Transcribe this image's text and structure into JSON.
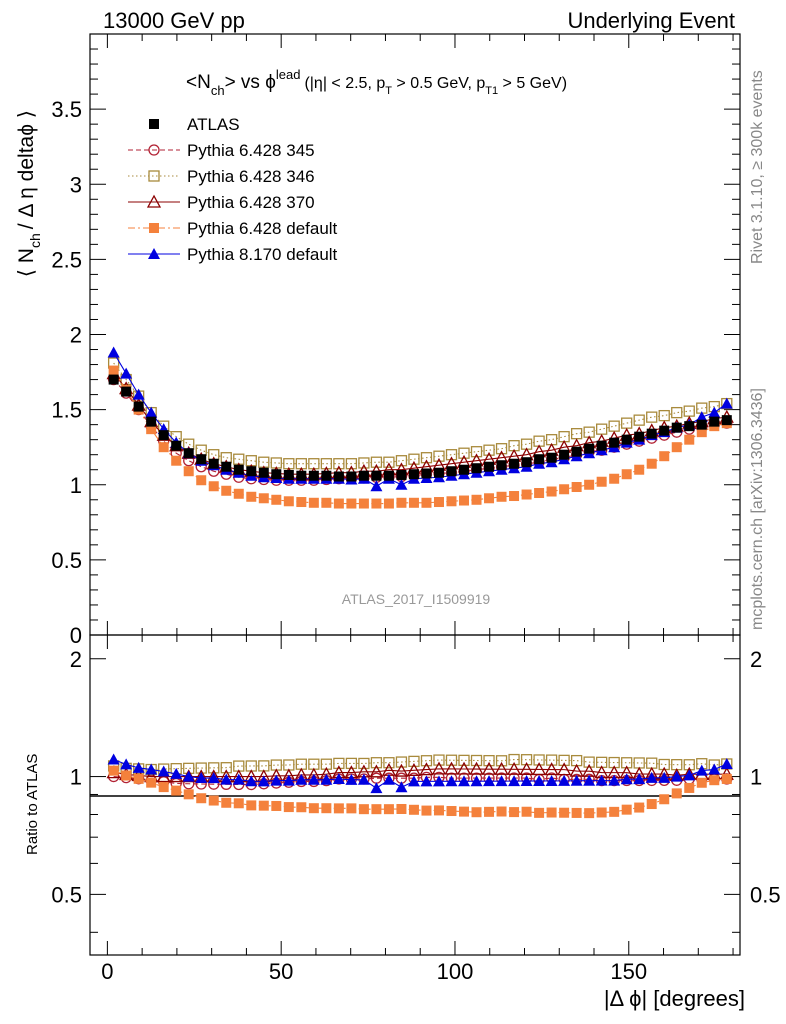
{
  "header": {
    "left": "13000 GeV pp",
    "right": "Underlying Event"
  },
  "side_labels": {
    "rivet": "Rivet 3.1.10, ≥ 300k events",
    "mcplots": "mcplots.cern.ch [arXiv:1306.3436]"
  },
  "watermark": "ATLAS_2017_I1509919",
  "chart_data": [
    {
      "type": "scatter",
      "panel": "main",
      "title_parts": {
        "pre": "<N",
        "pre_sub": "ch",
        "mid": "> vs ϕ",
        "mid_sup": "lead",
        "cut1": "(|η| < 2.5, p",
        "cut1_sub": "T",
        "cut2": " > 0.5 GeV, p",
        "cut2_sub": "T1",
        "cut3": " > 5 GeV)"
      },
      "ylabel_parts": {
        "a": "⟨ N",
        "a_sub": "ch",
        "b": "/ Δ η deltaϕ ⟩"
      },
      "xlim": [
        -5,
        182
      ],
      "ylim": [
        0,
        4
      ],
      "y_ticks": [
        "0",
        "0.5",
        "1",
        "1.5",
        "2",
        "2.5",
        "3",
        "3.5"
      ],
      "legend_position": "top-left",
      "x": [
        1.8,
        5.4,
        9.0,
        12.6,
        16.2,
        19.8,
        23.4,
        27.0,
        30.6,
        34.2,
        37.8,
        41.4,
        45.0,
        48.6,
        52.2,
        55.8,
        59.4,
        63.0,
        66.6,
        70.2,
        73.8,
        77.4,
        81.0,
        84.6,
        88.2,
        91.8,
        95.4,
        99.0,
        102.6,
        106.2,
        109.8,
        113.4,
        117.0,
        120.6,
        124.2,
        127.8,
        131.4,
        135.0,
        138.6,
        142.2,
        145.8,
        149.4,
        153.0,
        156.6,
        160.2,
        163.8,
        167.4,
        171.0,
        174.6,
        178.2
      ],
      "series": [
        {
          "name": "ATLAS",
          "color": "#000000",
          "marker": "square-filled",
          "line": "none",
          "values": [
            1.7,
            1.62,
            1.52,
            1.42,
            1.33,
            1.26,
            1.21,
            1.17,
            1.14,
            1.12,
            1.1,
            1.09,
            1.08,
            1.07,
            1.065,
            1.06,
            1.06,
            1.06,
            1.055,
            1.055,
            1.06,
            1.06,
            1.06,
            1.065,
            1.07,
            1.075,
            1.08,
            1.09,
            1.1,
            1.11,
            1.12,
            1.13,
            1.14,
            1.15,
            1.17,
            1.18,
            1.2,
            1.22,
            1.24,
            1.26,
            1.28,
            1.3,
            1.32,
            1.34,
            1.36,
            1.38,
            1.39,
            1.4,
            1.42,
            1.43
          ]
        },
        {
          "name": "Pythia 6.428 345",
          "color": "#b22234",
          "marker": "circle-open",
          "line": "dashed",
          "values": [
            1.7,
            1.61,
            1.5,
            1.39,
            1.29,
            1.21,
            1.16,
            1.12,
            1.09,
            1.07,
            1.05,
            1.04,
            1.035,
            1.03,
            1.03,
            1.03,
            1.03,
            1.035,
            1.04,
            1.04,
            1.045,
            1.05,
            1.05,
            1.055,
            1.06,
            1.07,
            1.075,
            1.08,
            1.09,
            1.1,
            1.11,
            1.12,
            1.13,
            1.14,
            1.15,
            1.17,
            1.18,
            1.2,
            1.22,
            1.23,
            1.25,
            1.27,
            1.29,
            1.31,
            1.33,
            1.35,
            1.37,
            1.38,
            1.4,
            1.41
          ]
        },
        {
          "name": "Pythia 6.428 346",
          "color": "#a88a3c",
          "marker": "square-open",
          "line": "dotted",
          "values": [
            1.81,
            1.7,
            1.59,
            1.48,
            1.39,
            1.32,
            1.27,
            1.23,
            1.2,
            1.18,
            1.17,
            1.16,
            1.15,
            1.145,
            1.14,
            1.14,
            1.14,
            1.14,
            1.14,
            1.14,
            1.145,
            1.15,
            1.15,
            1.16,
            1.17,
            1.18,
            1.19,
            1.2,
            1.21,
            1.22,
            1.23,
            1.24,
            1.26,
            1.27,
            1.29,
            1.3,
            1.32,
            1.34,
            1.35,
            1.37,
            1.39,
            1.41,
            1.43,
            1.45,
            1.46,
            1.48,
            1.49,
            1.51,
            1.52,
            1.54
          ]
        },
        {
          "name": "Pythia 6.428 370",
          "color": "#8b0000",
          "marker": "triangle-open",
          "line": "solid",
          "values": [
            1.74,
            1.64,
            1.53,
            1.42,
            1.33,
            1.26,
            1.21,
            1.17,
            1.14,
            1.12,
            1.1,
            1.09,
            1.08,
            1.075,
            1.07,
            1.07,
            1.07,
            1.075,
            1.08,
            1.08,
            1.09,
            1.09,
            1.1,
            1.1,
            1.11,
            1.12,
            1.13,
            1.14,
            1.15,
            1.16,
            1.17,
            1.18,
            1.19,
            1.2,
            1.22,
            1.23,
            1.25,
            1.26,
            1.28,
            1.29,
            1.31,
            1.33,
            1.34,
            1.36,
            1.38,
            1.39,
            1.41,
            1.42,
            1.44,
            1.45
          ]
        },
        {
          "name": "Pythia 6.428 default",
          "color": "#f4813c",
          "marker": "square-filled",
          "line": "dashdot",
          "values": [
            1.76,
            1.63,
            1.5,
            1.37,
            1.25,
            1.16,
            1.09,
            1.03,
            0.99,
            0.96,
            0.94,
            0.92,
            0.91,
            0.9,
            0.89,
            0.885,
            0.88,
            0.88,
            0.875,
            0.875,
            0.875,
            0.875,
            0.875,
            0.88,
            0.88,
            0.88,
            0.885,
            0.89,
            0.895,
            0.9,
            0.91,
            0.92,
            0.925,
            0.935,
            0.945,
            0.955,
            0.97,
            0.985,
            1.0,
            1.02,
            1.04,
            1.07,
            1.1,
            1.14,
            1.19,
            1.25,
            1.3,
            1.35,
            1.39,
            1.41
          ]
        },
        {
          "name": "Pythia 8.170 default",
          "color": "#0000e0",
          "marker": "triangle-filled",
          "line": "solid",
          "values": [
            1.88,
            1.74,
            1.6,
            1.48,
            1.37,
            1.28,
            1.21,
            1.16,
            1.13,
            1.1,
            1.08,
            1.06,
            1.05,
            1.045,
            1.04,
            1.04,
            1.04,
            1.04,
            1.04,
            1.035,
            1.04,
            0.99,
            1.04,
            1.0,
            1.04,
            1.045,
            1.05,
            1.06,
            1.07,
            1.08,
            1.09,
            1.1,
            1.11,
            1.12,
            1.14,
            1.15,
            1.17,
            1.19,
            1.21,
            1.23,
            1.25,
            1.28,
            1.3,
            1.33,
            1.35,
            1.38,
            1.4,
            1.45,
            1.48,
            1.54
          ]
        }
      ]
    },
    {
      "type": "scatter",
      "panel": "ratio",
      "ylabel": "Ratio to ATLAS",
      "xlabel": "|Δ ϕ| [degrees]",
      "xlim": [
        -5,
        182
      ],
      "ylim": [
        0.35,
        2.3
      ],
      "y_ticks": [
        "0.5",
        "1",
        "2"
      ],
      "x_ticks": [
        "0",
        "50",
        "100",
        "150"
      ],
      "reference_line": 1
    }
  ]
}
